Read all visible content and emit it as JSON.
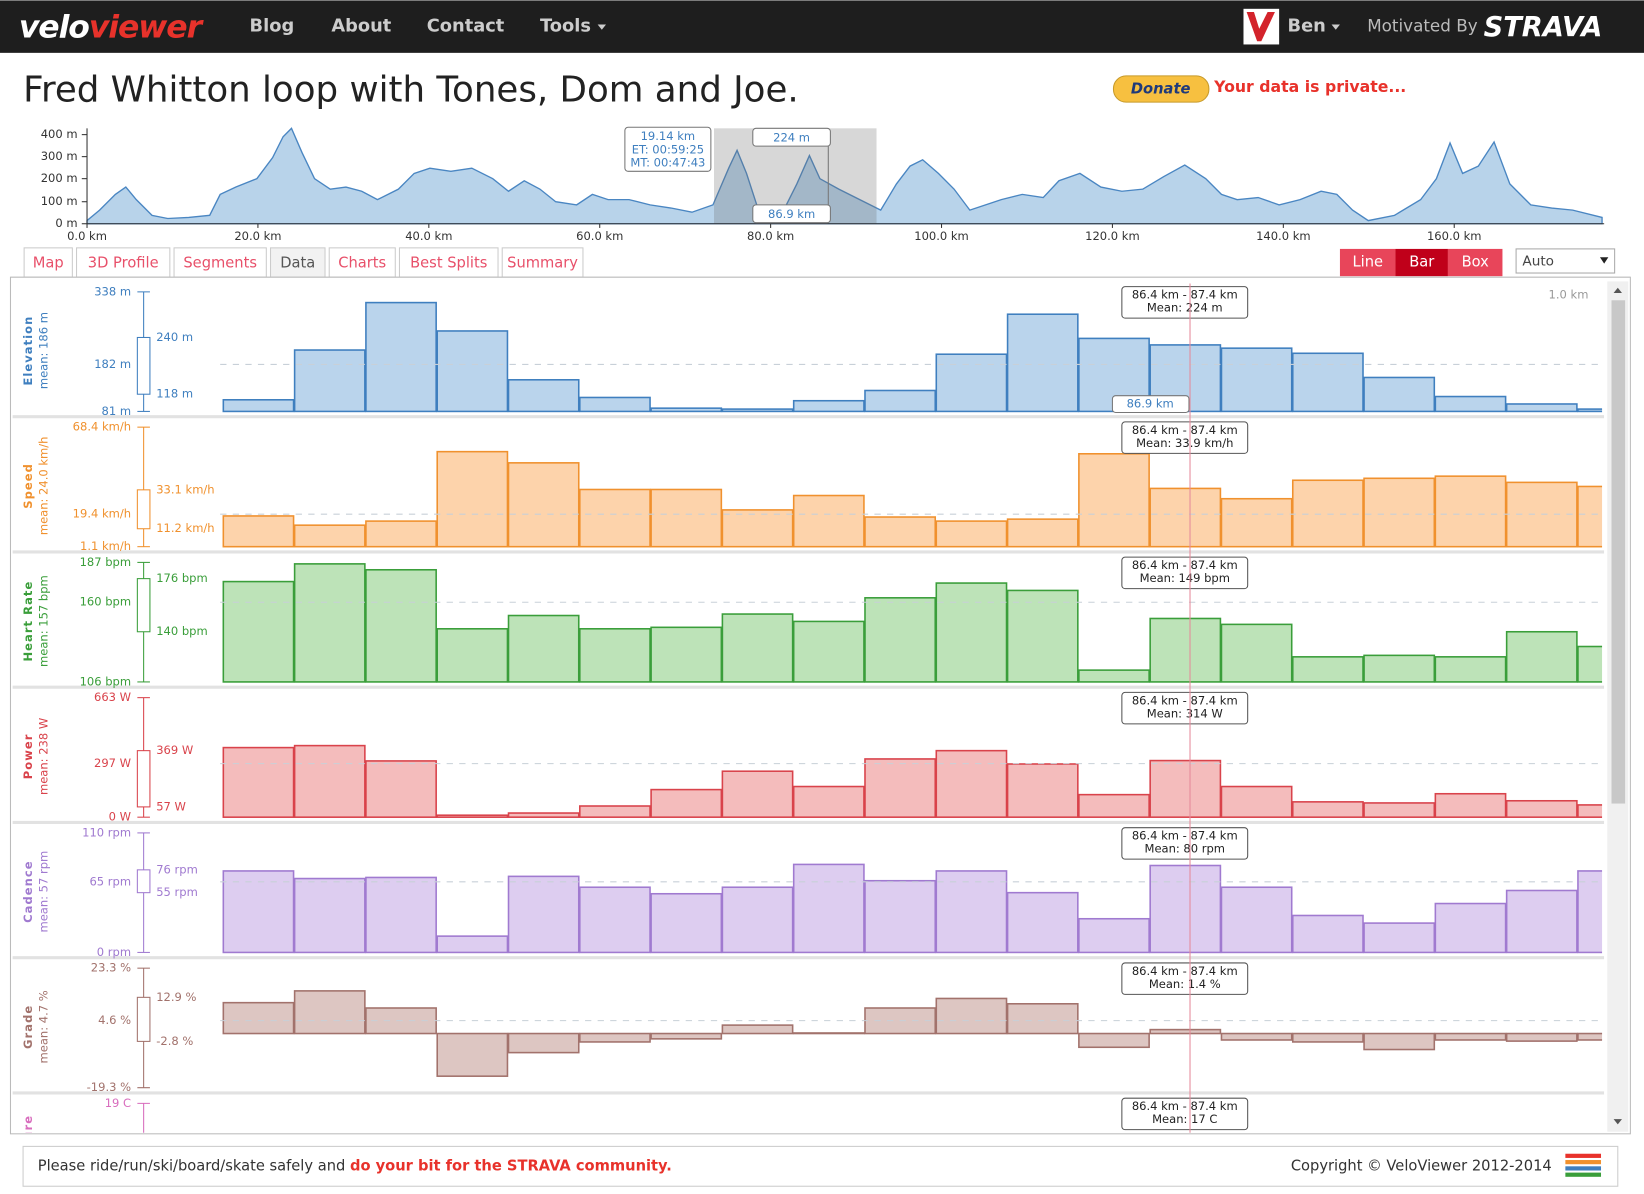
{
  "nav": {
    "logo_a": "velo",
    "logo_b": "viewer",
    "links": [
      "Blog",
      "About",
      "Contact",
      "Tools"
    ],
    "user": "Ben",
    "motivated": "Motivated By",
    "strava": "STRAVA"
  },
  "title": "Fred Whitton loop with Tones, Dom and Joe.",
  "donate": "Donate",
  "privacy": "Your data is private...",
  "profile": {
    "y_labels": [
      "400 m",
      "300 m",
      "200 m",
      "100 m",
      "0 m"
    ],
    "x_labels": [
      "0.0 km",
      "20.0 km",
      "40.0 km",
      "60.0 km",
      "80.0 km",
      "100.0 km",
      "120.0 km",
      "140.0 km",
      "160.0 km"
    ],
    "tooltip": [
      "19.14 km",
      "ET: 00:59:25",
      "MT: 00:47:43"
    ],
    "marker_elev": "224 m",
    "marker_dist": "86.9 km"
  },
  "tabs": [
    "Map",
    "3D Profile",
    "Segments",
    "Data",
    "Charts",
    "Best Splits",
    "Summary"
  ],
  "modes": [
    "Line",
    "Bar",
    "Box"
  ],
  "select": "Auto",
  "scale_label": "1.0 km",
  "panels": [
    {
      "name": "Elevation",
      "mean": "mean: 186 m",
      "color": "#3f7fbf",
      "fill": "#bad4ec",
      "axis": [
        {
          "value": 338,
          "label": "338 m"
        },
        {
          "value": 182,
          "label": "182 m"
        },
        {
          "value": 81,
          "label": "81 m"
        }
      ],
      "quartiles": [
        {
          "value": 240,
          "label": "240 m"
        },
        {
          "value": 118,
          "label": "118 m"
        }
      ],
      "ylim": [
        81,
        338
      ],
      "values": [
        106,
        213,
        315,
        254,
        149,
        111,
        88,
        86,
        104,
        126,
        204,
        290,
        238,
        224,
        217,
        206,
        154,
        113,
        97,
        86
      ],
      "tooltip": [
        "86.4 km - 87.4 km",
        "Mean: 224 m"
      ],
      "cursor": "86.9 km"
    },
    {
      "name": "Speed",
      "mean": "mean: 24.0 km/h",
      "color": "#f0912e",
      "fill": "#fdd3ab",
      "axis": [
        {
          "value": 68.4,
          "label": "68.4 km/h"
        },
        {
          "value": 19.4,
          "label": "19.4 km/h"
        },
        {
          "value": 1.1,
          "label": "1.1 km/h"
        }
      ],
      "quartiles": [
        {
          "value": 33.1,
          "label": "33.1 km/h"
        },
        {
          "value": 11.2,
          "label": "11.2 km/h"
        }
      ],
      "ylim": [
        1.1,
        68.4
      ],
      "values": [
        18.4,
        13.2,
        15.5,
        54.6,
        48.3,
        33.3,
        33.3,
        21.8,
        29.9,
        17.8,
        15.5,
        16.6,
        53.4,
        33.9,
        28.1,
        38.5,
        39.6,
        40.8,
        37.3,
        35.0
      ],
      "tooltip": [
        "86.4 km - 87.4 km",
        "Mean: 33.9 km/h"
      ]
    },
    {
      "name": "Heart Rate",
      "mean": "mean: 157 bpm",
      "color": "#3a9e3a",
      "fill": "#bde3b8",
      "axis": [
        {
          "value": 187,
          "label": "187 bpm"
        },
        {
          "value": 160,
          "label": "160 bpm"
        },
        {
          "value": 106,
          "label": "106 bpm"
        }
      ],
      "quartiles": [
        {
          "value": 176,
          "label": "176 bpm"
        },
        {
          "value": 140,
          "label": "140 bpm"
        }
      ],
      "ylim": [
        106,
        187
      ],
      "values": [
        174,
        186,
        182,
        142,
        151,
        142,
        143,
        152,
        147,
        163,
        173,
        168,
        114,
        149,
        145,
        123,
        124,
        123,
        140,
        130
      ],
      "tooltip": [
        "86.4 km - 87.4 km",
        "Mean: 149 bpm"
      ]
    },
    {
      "name": "Power",
      "mean": "mean: 238 W",
      "color": "#d9434b",
      "fill": "#f4bcbc",
      "axis": [
        {
          "value": 663,
          "label": "663 W"
        },
        {
          "value": 297,
          "label": "297 W"
        },
        {
          "value": 0,
          "label": "0 W"
        }
      ],
      "quartiles": [
        {
          "value": 369,
          "label": "369 W"
        },
        {
          "value": 57,
          "label": "57 W"
        }
      ],
      "ylim": [
        0,
        663
      ],
      "values": [
        386,
        397,
        312,
        11,
        23,
        62,
        153,
        255,
        170,
        323,
        369,
        295,
        125,
        314,
        170,
        85,
        79,
        130,
        91,
        68
      ],
      "tooltip": [
        "86.4 km - 87.4 km",
        "Mean: 314 W"
      ]
    },
    {
      "name": "Cadence",
      "mean": "mean: 57 rpm",
      "color": "#a07ad0",
      "fill": "#ddcdf0",
      "axis": [
        {
          "value": 110,
          "label": "110 rpm"
        },
        {
          "value": 65,
          "label": "65 rpm"
        },
        {
          "value": 0,
          "label": "0 rpm"
        }
      ],
      "quartiles": [
        {
          "value": 76,
          "label": "76 rpm"
        },
        {
          "value": 55,
          "label": "55 rpm"
        }
      ],
      "ylim": [
        0,
        110
      ],
      "values": [
        75,
        68,
        69,
        15,
        70,
        60,
        54,
        60,
        81,
        66,
        75,
        55,
        31,
        80,
        60,
        34,
        27,
        45,
        57,
        75
      ],
      "tooltip": [
        "86.4 km - 87.4 km",
        "Mean: 80 rpm"
      ]
    },
    {
      "name": "Grade",
      "mean": "mean: 4.7 %",
      "color": "#a2726c",
      "fill": "#ddc6c2",
      "axis": [
        {
          "value": 23.3,
          "label": "23.3 %"
        },
        {
          "value": 4.6,
          "label": "4.6 %"
        },
        {
          "value": -19.3,
          "label": "-19.3 %"
        }
      ],
      "quartiles": [
        {
          "value": 12.9,
          "label": "12.9 %"
        },
        {
          "value": -2.8,
          "label": "-2.8 %"
        }
      ],
      "ylim": [
        -19.3,
        23.3
      ],
      "values": [
        11.0,
        15.2,
        9.1,
        -15.2,
        -6.8,
        -3.0,
        -1.9,
        3.0,
        0.2,
        9.1,
        12.5,
        10.6,
        -4.9,
        1.4,
        -2.3,
        -3.0,
        -5.7,
        -2.3,
        -2.7,
        -2.3
      ],
      "tooltip": [
        "86.4 km - 87.4 km",
        "Mean: 1.4 %"
      ]
    },
    {
      "name": "Temperature",
      "color": "#d86cbd",
      "fill": "#f6c8e8",
      "axis": [
        {
          "value": 19,
          "label": "19 C"
        }
      ],
      "tooltip": [
        "86.4 km - 87.4 km",
        "Mean: 17 C"
      ]
    }
  ],
  "footer": {
    "text": "Please ride/run/ski/board/skate safely and ",
    "link": "do your bit for the STRAVA community.",
    "copyright": "Copyright © VeloViewer 2012-2014"
  }
}
